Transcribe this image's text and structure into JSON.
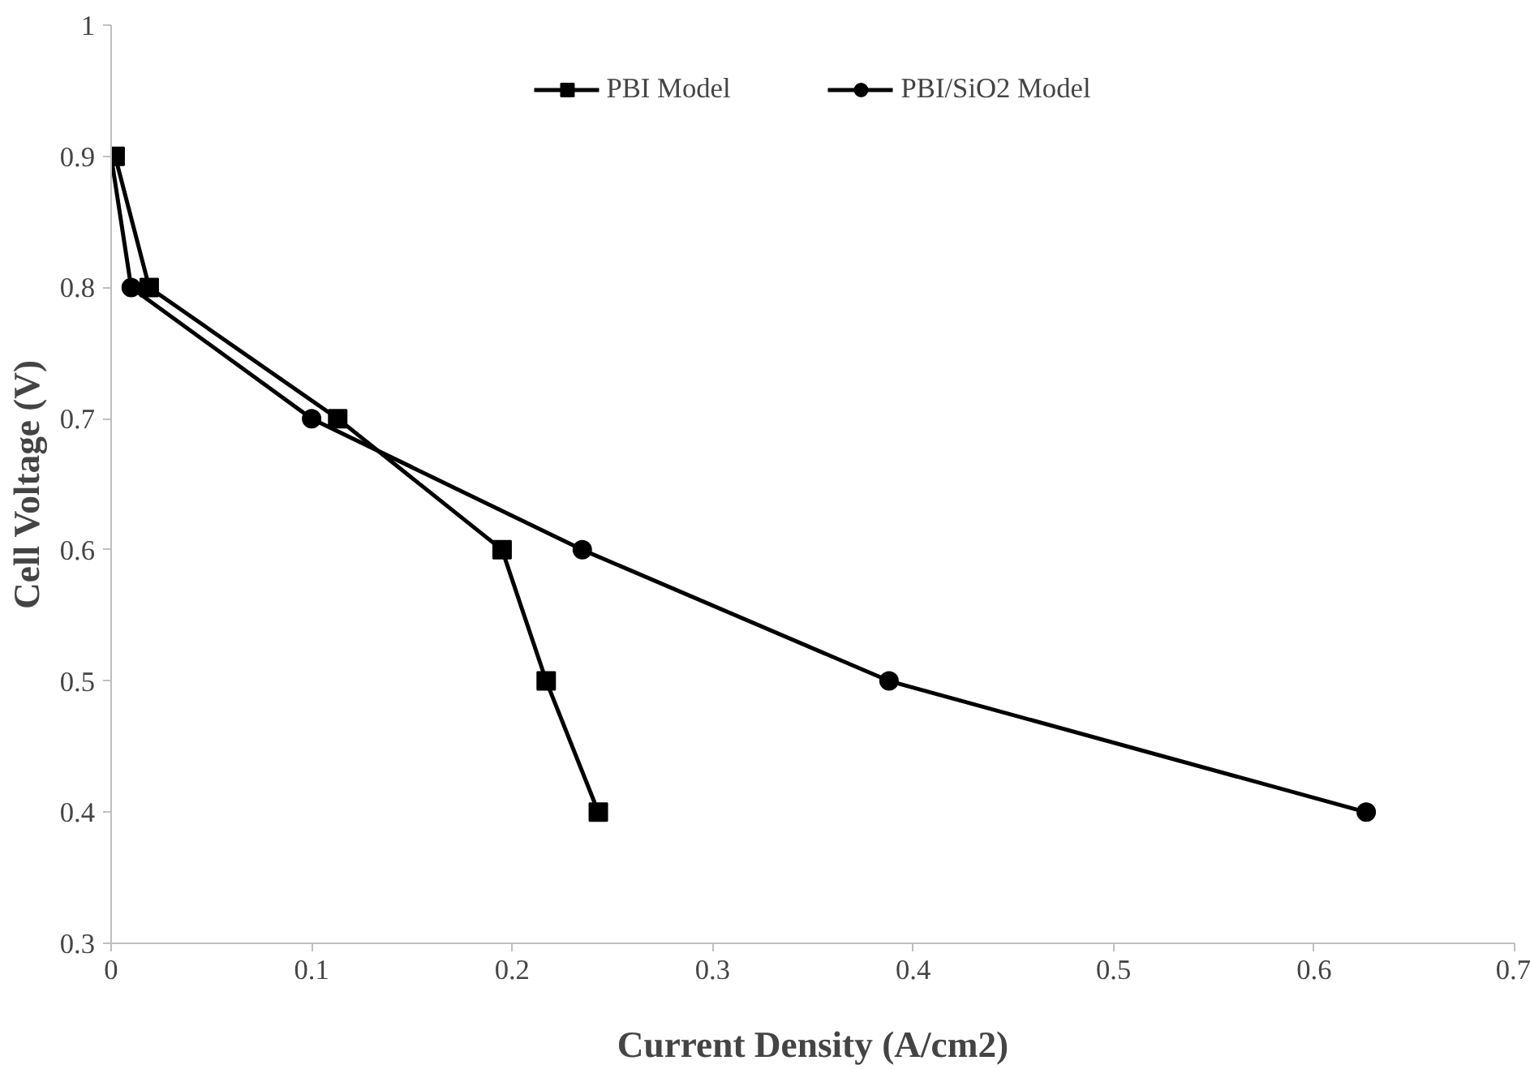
{
  "chart_data": {
    "type": "line",
    "xlabel": "Current Density (A/cm2)",
    "ylabel": "Cell Voltage (V)",
    "xlim": [
      0,
      0.7
    ],
    "xticks": [
      0,
      0.1,
      0.2,
      0.3,
      0.4,
      0.5,
      0.6,
      0.7
    ],
    "ylim": [
      0.3,
      1
    ],
    "yticks": [
      0.3,
      0.4,
      0.5,
      0.6,
      0.7,
      0.8,
      0.9,
      1
    ],
    "grid": false,
    "legend": "top",
    "line_style": "solid",
    "series": [
      {
        "name": "PBI Model",
        "color": "#000000",
        "marker": "square",
        "x": [
          0.002,
          0.019,
          0.113,
          0.195,
          0.217,
          0.243
        ],
        "values": [
          0.9,
          0.8,
          0.7,
          0.6,
          0.5,
          0.4
        ]
      },
      {
        "name": "PBI/SiO2 Model",
        "color": "#000000",
        "marker": "circle",
        "x": [
          0,
          0.01,
          0.1,
          0.235,
          0.388,
          0.626
        ],
        "values": [
          0.9,
          0.8,
          0.7,
          0.6,
          0.5,
          0.4
        ]
      }
    ]
  }
}
